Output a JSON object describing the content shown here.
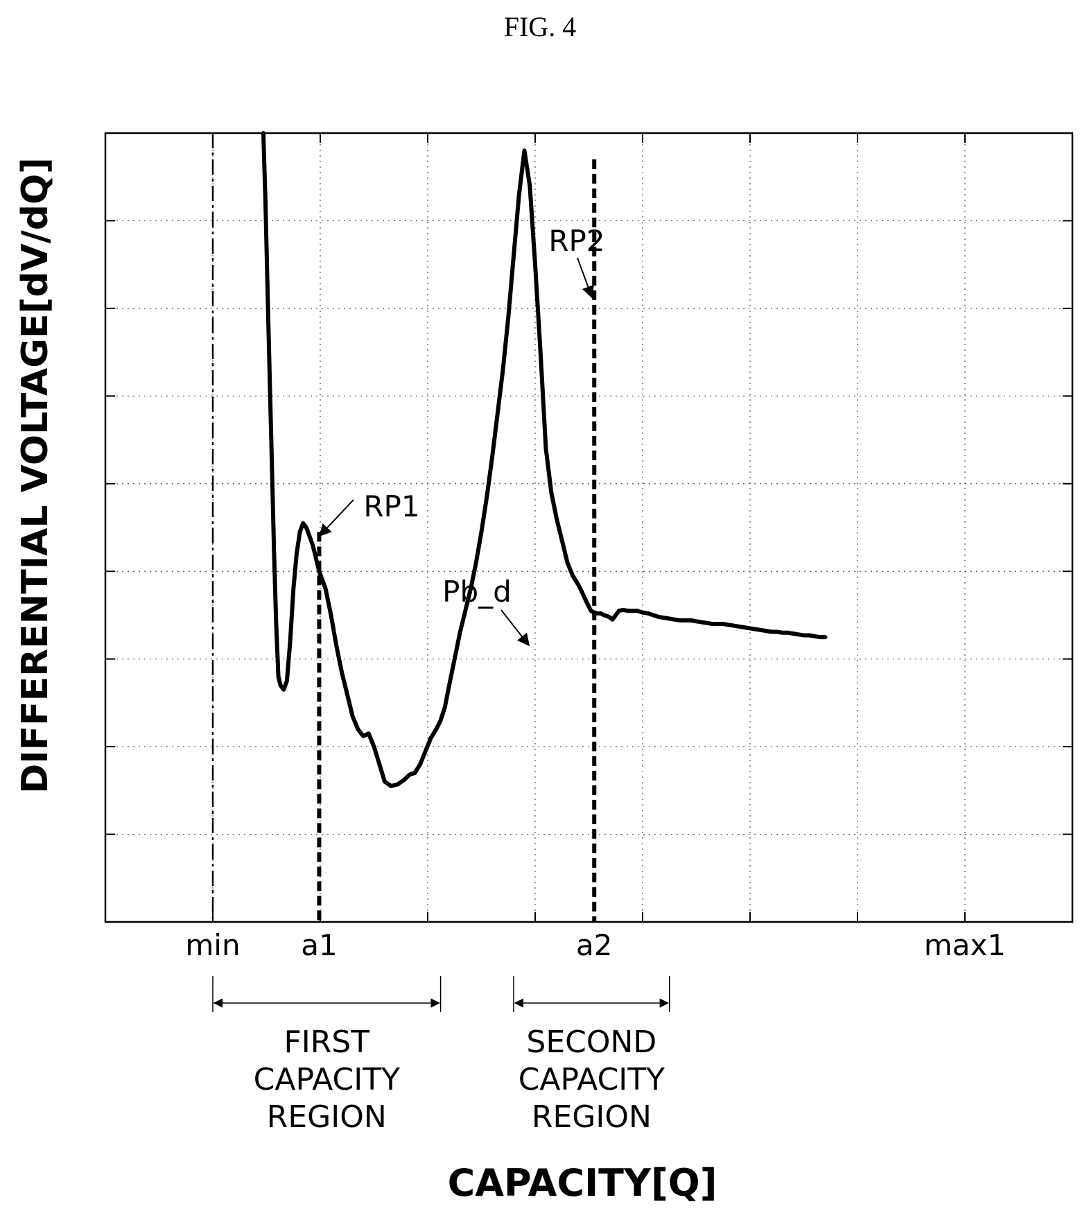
{
  "figure_label": "FIG. 4",
  "chart_data": {
    "type": "line",
    "title": "",
    "xlabel": "CAPACITY[Q]",
    "ylabel": "DIFFERENTIAL VOLTAGE[dV/dQ]",
    "x_scale": "Q (relative, 0–9 grid divisions; min at 1, max1 at 8)",
    "xlim": [
      0,
      9
    ],
    "ylim": [
      0,
      9
    ],
    "grid": true,
    "x_tick_labels": [
      {
        "label": "min",
        "x": 1.0
      },
      {
        "label": "a1",
        "x": 1.99
      },
      {
        "label": "a2",
        "x": 4.55
      },
      {
        "label": "max1",
        "x": 8.0
      }
    ],
    "series": [
      {
        "x": [
          1.47,
          1.49,
          1.51,
          1.53,
          1.55,
          1.57,
          1.59,
          1.61,
          1.63,
          1.66,
          1.69,
          1.72,
          1.75,
          1.78,
          1.81,
          1.84,
          1.87,
          1.9,
          1.93,
          1.95,
          1.97,
          1.99,
          2.02,
          2.05,
          2.1,
          2.15,
          2.2,
          2.25,
          2.3,
          2.35,
          2.4,
          2.45,
          2.5,
          2.55,
          2.6,
          2.66,
          2.72,
          2.78,
          2.83,
          2.88,
          2.93,
          2.98,
          3.03,
          3.08,
          3.12,
          3.16,
          3.2,
          3.25,
          3.3,
          3.35,
          3.4,
          3.45,
          3.5,
          3.55,
          3.6,
          3.65,
          3.7,
          3.75,
          3.8,
          3.85,
          3.9,
          3.95,
          4.0,
          4.05,
          4.1,
          4.15,
          4.2,
          4.25,
          4.3,
          4.35,
          4.4,
          4.43,
          4.46,
          4.49,
          4.52,
          4.55,
          4.58,
          4.61,
          4.64,
          4.67,
          4.7,
          4.72,
          4.75,
          4.78,
          4.82,
          4.86,
          4.9,
          4.95,
          5.0,
          5.05,
          5.1,
          5.15,
          5.2,
          5.25,
          5.3,
          5.35,
          5.4,
          5.45,
          5.5,
          5.55,
          5.6,
          5.65,
          5.7,
          5.75,
          5.8,
          5.85,
          5.9,
          5.95,
          6.0,
          6.05,
          6.1,
          6.15,
          6.2,
          6.25,
          6.3,
          6.35,
          6.4,
          6.45,
          6.5,
          6.55,
          6.6,
          6.65,
          6.7
        ],
        "y": [
          9.0,
          8.2,
          7.2,
          6.2,
          5.2,
          4.2,
          3.4,
          2.8,
          2.7,
          2.65,
          2.75,
          3.2,
          3.8,
          4.2,
          4.45,
          4.55,
          4.5,
          4.4,
          4.3,
          4.2,
          4.1,
          4.0,
          3.9,
          3.8,
          3.5,
          3.15,
          2.85,
          2.6,
          2.35,
          2.2,
          2.12,
          2.15,
          2.0,
          1.8,
          1.6,
          1.55,
          1.57,
          1.62,
          1.68,
          1.7,
          1.8,
          1.95,
          2.1,
          2.2,
          2.3,
          2.45,
          2.7,
          3.0,
          3.3,
          3.55,
          3.8,
          4.1,
          4.45,
          4.85,
          5.3,
          5.8,
          6.3,
          6.9,
          7.6,
          8.3,
          8.8,
          8.4,
          7.5,
          6.5,
          5.4,
          4.9,
          4.6,
          4.35,
          4.1,
          3.95,
          3.85,
          3.78,
          3.7,
          3.62,
          3.55,
          3.53,
          3.52,
          3.52,
          3.5,
          3.49,
          3.47,
          3.45,
          3.5,
          3.55,
          3.56,
          3.55,
          3.55,
          3.55,
          3.53,
          3.52,
          3.5,
          3.48,
          3.47,
          3.46,
          3.45,
          3.44,
          3.44,
          3.44,
          3.43,
          3.42,
          3.41,
          3.4,
          3.4,
          3.4,
          3.39,
          3.38,
          3.37,
          3.36,
          3.35,
          3.34,
          3.33,
          3.32,
          3.31,
          3.31,
          3.3,
          3.3,
          3.29,
          3.28,
          3.27,
          3.27,
          3.26,
          3.25,
          3.25
        ]
      }
    ],
    "annotations": [
      {
        "label": "RP1",
        "x": 1.99,
        "y": 4.3
      },
      {
        "label": "RP2",
        "x": 4.55,
        "y": 7.0
      },
      {
        "label": "Pb_d",
        "x": 3.98,
        "y": 3.17
      }
    ],
    "regions": [
      {
        "label_lines": [
          "FIRST",
          "CAPACITY",
          "REGION"
        ],
        "x_start": 1.0,
        "x_end": 3.12
      },
      {
        "label_lines": [
          "SECOND",
          "CAPACITY",
          "REGION"
        ],
        "x_start": 3.8,
        "x_end": 5.25
      }
    ]
  }
}
